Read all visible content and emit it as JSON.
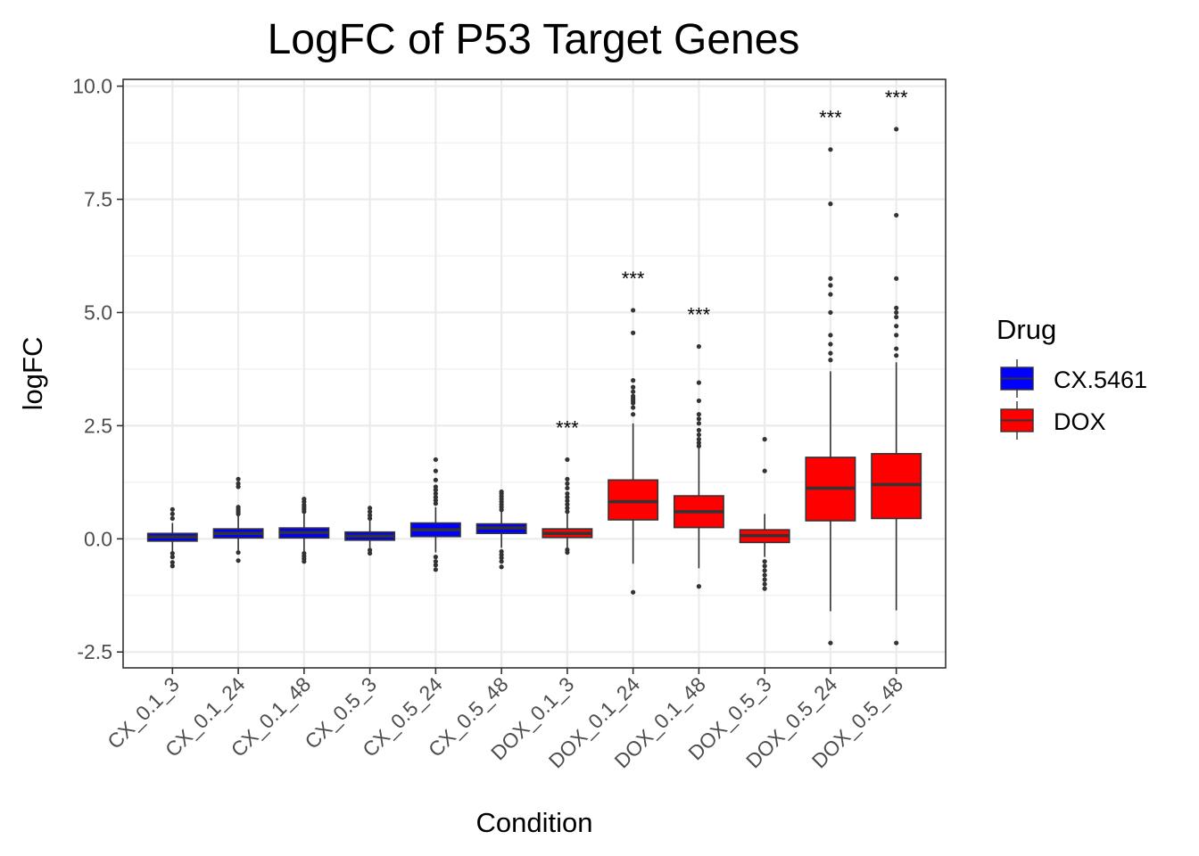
{
  "chart_data": {
    "type": "boxplot",
    "title": "LogFC of P53 Target Genes",
    "xlabel": "Condition",
    "ylabel": "logFC",
    "ylim": [
      -2.85,
      10.15
    ],
    "yticks": [
      -2.5,
      0.0,
      2.5,
      5.0,
      7.5,
      10.0
    ],
    "ytick_labels": [
      "-2.5",
      "0.0",
      "2.5",
      "5.0",
      "7.5",
      "10.0"
    ],
    "grid": true,
    "legend": {
      "title": "Drug",
      "position": "right",
      "entries": [
        {
          "label": "CX.5461",
          "color": "#0000ff"
        },
        {
          "label": "DOX",
          "color": "#ff0000"
        }
      ]
    },
    "colors": {
      "CX.5461": "#0000ff",
      "DOX": "#ff0000",
      "outline": "#333333"
    },
    "categories": [
      "CX_0.1_3",
      "CX_0.1_24",
      "CX_0.1_48",
      "CX_0.5_3",
      "CX_0.5_24",
      "CX_0.5_48",
      "DOX_0.1_3",
      "DOX_0.1_24",
      "DOX_0.1_48",
      "DOX_0.5_3",
      "DOX_0.5_24",
      "DOX_0.5_48"
    ],
    "boxes": [
      {
        "drug": "CX.5461",
        "q1": -0.05,
        "median": 0.04,
        "q3": 0.12,
        "whisker_low": -0.28,
        "whisker_high": 0.35,
        "outliers": [
          0.45,
          0.55,
          0.65,
          -0.32,
          -0.4,
          -0.52,
          -0.6
        ],
        "sig": ""
      },
      {
        "drug": "CX.5461",
        "q1": 0.02,
        "median": 0.12,
        "q3": 0.22,
        "whisker_low": -0.25,
        "whisker_high": 0.5,
        "outliers": [
          0.55,
          0.6,
          0.65,
          0.7,
          1.15,
          1.22,
          1.32,
          -0.3,
          -0.48
        ],
        "sig": ""
      },
      {
        "drug": "CX.5461",
        "q1": 0.02,
        "median": 0.14,
        "q3": 0.24,
        "whisker_low": -0.28,
        "whisker_high": 0.55,
        "outliers": [
          0.6,
          0.65,
          0.7,
          0.75,
          0.82,
          0.88,
          -0.32,
          -0.38,
          -0.44,
          -0.5
        ],
        "sig": ""
      },
      {
        "drug": "CX.5461",
        "q1": -0.03,
        "median": 0.06,
        "q3": 0.15,
        "whisker_low": -0.2,
        "whisker_high": 0.4,
        "outliers": [
          0.45,
          0.52,
          0.6,
          0.68,
          -0.25,
          -0.32
        ],
        "sig": ""
      },
      {
        "drug": "CX.5461",
        "q1": 0.05,
        "median": 0.2,
        "q3": 0.35,
        "whisker_low": -0.3,
        "whisker_high": 0.7,
        "outliers": [
          0.78,
          0.85,
          0.92,
          1.0,
          1.08,
          1.15,
          1.3,
          1.5,
          1.75,
          -0.4,
          -0.5,
          -0.58,
          -0.68
        ],
        "sig": ""
      },
      {
        "drug": "CX.5461",
        "q1": 0.12,
        "median": 0.24,
        "q3": 0.33,
        "whisker_low": -0.2,
        "whisker_high": 0.6,
        "outliers": [
          0.64,
          0.7,
          0.76,
          0.82,
          0.88,
          0.94,
          1.0,
          1.04,
          -0.28,
          -0.35,
          -0.42,
          -0.5,
          -0.62
        ],
        "sig": ""
      },
      {
        "drug": "DOX",
        "q1": 0.03,
        "median": 0.12,
        "q3": 0.22,
        "whisker_low": -0.2,
        "whisker_high": 0.55,
        "outliers": [
          0.6,
          0.68,
          0.76,
          0.84,
          0.92,
          1.0,
          1.12,
          1.22,
          1.32,
          1.75,
          -0.24,
          -0.3
        ],
        "sig": "***"
      },
      {
        "drug": "DOX",
        "q1": 0.42,
        "median": 0.82,
        "q3": 1.3,
        "whisker_low": -0.55,
        "whisker_high": 2.55,
        "outliers": [
          2.75,
          2.9,
          3.0,
          3.05,
          3.1,
          3.15,
          3.25,
          3.35,
          3.5,
          4.55,
          5.05,
          -1.18
        ],
        "sig": "***"
      },
      {
        "drug": "DOX",
        "q1": 0.25,
        "median": 0.6,
        "q3": 0.95,
        "whisker_low": -0.65,
        "whisker_high": 2.0,
        "outliers": [
          2.05,
          2.12,
          2.2,
          2.3,
          2.4,
          2.55,
          2.65,
          2.75,
          3.05,
          3.45,
          4.25,
          -1.05
        ],
        "sig": "***"
      },
      {
        "drug": "DOX",
        "q1": -0.08,
        "median": 0.07,
        "q3": 0.2,
        "whisker_low": -0.4,
        "whisker_high": 0.55,
        "outliers": [
          1.5,
          2.2,
          -0.5,
          -0.6,
          -0.7,
          -0.8,
          -0.9,
          -1.0,
          -1.1
        ],
        "sig": ""
      },
      {
        "drug": "DOX",
        "q1": 0.4,
        "median": 1.12,
        "q3": 1.8,
        "whisker_low": -1.6,
        "whisker_high": 3.7,
        "outliers": [
          3.95,
          4.1,
          4.3,
          4.5,
          5.0,
          5.4,
          5.6,
          5.75,
          7.4,
          8.6,
          -2.3
        ],
        "sig": "***"
      },
      {
        "drug": "DOX",
        "q1": 0.45,
        "median": 1.2,
        "q3": 1.88,
        "whisker_low": -1.58,
        "whisker_high": 3.9,
        "outliers": [
          4.05,
          4.2,
          4.5,
          4.7,
          4.9,
          5.0,
          5.1,
          5.75,
          7.15,
          9.05,
          -2.3
        ],
        "sig": "***"
      }
    ]
  }
}
